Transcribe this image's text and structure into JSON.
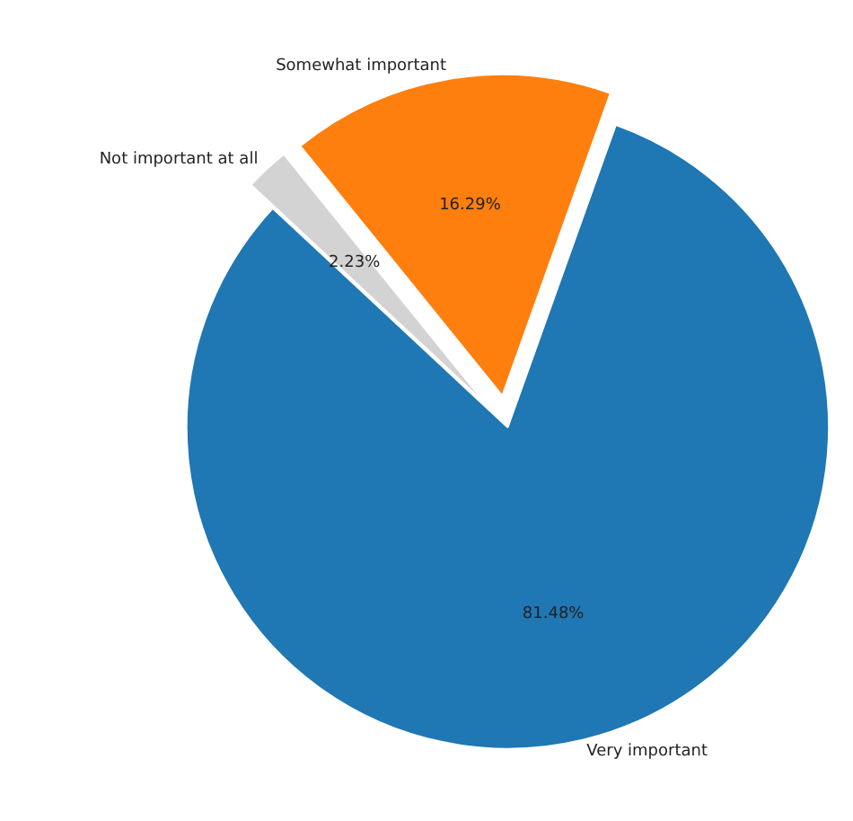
{
  "chart_data": {
    "type": "pie",
    "categories": [
      "Very important",
      "Somewhat important",
      "Not important at all"
    ],
    "values": [
      81.48,
      16.29,
      2.23
    ],
    "colors": [
      "#1f77b4",
      "#ff7f0e",
      "#d3d3d3"
    ],
    "value_labels": [
      "81.48%",
      "16.29%",
      "2.23%"
    ]
  }
}
